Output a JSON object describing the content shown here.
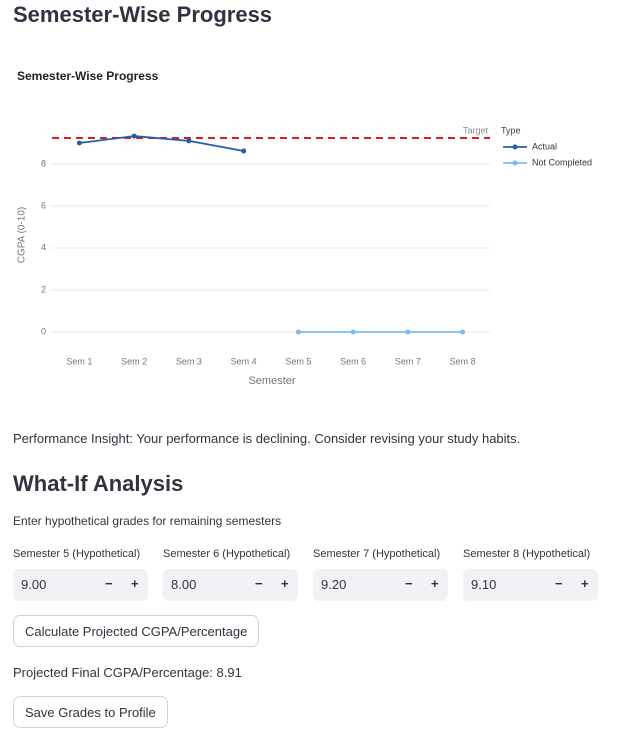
{
  "header": {
    "title": "Semester-Wise Progress"
  },
  "chart_data": {
    "type": "line",
    "title": "Semester-Wise Progress",
    "x_label": "Semester",
    "y_label": "CGPA (0-10)",
    "legend_title": "Type",
    "categories": [
      "Sem 1",
      "Sem 2",
      "Sem 3",
      "Sem 4",
      "Sem 5",
      "Sem 6",
      "Sem 7",
      "Sem 8"
    ],
    "series": [
      {
        "name": "Actual",
        "color": "#1f5fb0",
        "values": [
          9.0,
          9.33,
          9.1,
          8.62,
          null,
          null,
          null,
          null
        ]
      },
      {
        "name": "Not Completed",
        "color": "#7cbcf2",
        "values": [
          null,
          null,
          null,
          null,
          0,
          0,
          0,
          0
        ]
      }
    ],
    "target": 9.24,
    "target_label": "Target",
    "target_color": "#e11b1b",
    "ylim": [
      -0.6,
      9.7
    ],
    "yticks": [
      0,
      2,
      4,
      6,
      8
    ],
    "grid": true
  },
  "insight": "Performance Insight: Your performance is declining. Consider revising your study habits.",
  "whatif": {
    "title": "What-If Analysis",
    "subtitle": "Enter hypothetical grades for remaining semesters",
    "stepper": {
      "minus": "−",
      "plus": "+"
    },
    "inputs": [
      {
        "label": "Semester 5 (Hypothetical)",
        "value": "9.00"
      },
      {
        "label": "Semester 6 (Hypothetical)",
        "value": "8.00"
      },
      {
        "label": "Semester 7 (Hypothetical)",
        "value": "9.20"
      },
      {
        "label": "Semester 8 (Hypothetical)",
        "value": "9.10"
      }
    ],
    "calculate": "Calculate Projected CGPA/Percentage",
    "result": "Projected Final CGPA/Percentage: 8.91",
    "save": "Save Grades to Profile"
  }
}
